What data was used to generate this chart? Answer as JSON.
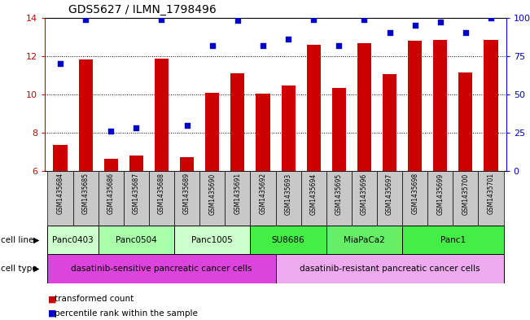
{
  "title": "GDS5627 / ILMN_1798496",
  "samples": [
    "GSM1435684",
    "GSM1435685",
    "GSM1435686",
    "GSM1435687",
    "GSM1435688",
    "GSM1435689",
    "GSM1435690",
    "GSM1435691",
    "GSM1435692",
    "GSM1435693",
    "GSM1435694",
    "GSM1435695",
    "GSM1435696",
    "GSM1435697",
    "GSM1435698",
    "GSM1435699",
    "GSM1435700",
    "GSM1435701"
  ],
  "bar_values": [
    7.35,
    11.8,
    6.65,
    6.8,
    11.85,
    6.75,
    10.1,
    11.1,
    10.05,
    10.45,
    12.6,
    10.35,
    12.65,
    11.05,
    12.8,
    12.85,
    11.15,
    12.85
  ],
  "blue_values": [
    70,
    99,
    26,
    28,
    99,
    30,
    82,
    98,
    82,
    86,
    99,
    82,
    99,
    90,
    95,
    97,
    90,
    100
  ],
  "ylim_left": [
    6,
    14
  ],
  "ylim_right": [
    0,
    100
  ],
  "yticks_left": [
    6,
    8,
    10,
    12,
    14
  ],
  "yticks_right": [
    0,
    25,
    50,
    75,
    100
  ],
  "bar_color": "#cc0000",
  "blue_color": "#0000cc",
  "cell_lines": [
    {
      "label": "Panc0403",
      "start": 0,
      "end": 2,
      "color": "#ccffcc"
    },
    {
      "label": "Panc0504",
      "start": 2,
      "end": 5,
      "color": "#aaffaa"
    },
    {
      "label": "Panc1005",
      "start": 5,
      "end": 8,
      "color": "#ccffcc"
    },
    {
      "label": "SU8686",
      "start": 8,
      "end": 11,
      "color": "#44ee44"
    },
    {
      "label": "MiaPaCa2",
      "start": 11,
      "end": 14,
      "color": "#66ee66"
    },
    {
      "label": "Panc1",
      "start": 14,
      "end": 18,
      "color": "#44ee44"
    }
  ],
  "cell_types": [
    {
      "label": "dasatinib-sensitive pancreatic cancer cells",
      "start": 0,
      "end": 9,
      "color": "#dd44dd"
    },
    {
      "label": "dasatinib-resistant pancreatic cancer cells",
      "start": 9,
      "end": 18,
      "color": "#eeaaee"
    }
  ],
  "cell_line_row_label": "cell line",
  "cell_type_row_label": "cell type",
  "legend_bar_label": "transformed count",
  "legend_blue_label": "percentile rank within the sample",
  "bar_color_legend": "#cc0000",
  "blue_color_legend": "#0000cc",
  "tick_color_left": "#cc0000",
  "tick_color_right": "#0000cc",
  "grid_yticks": [
    8,
    10,
    12
  ],
  "sample_box_color": "#c8c8c8"
}
